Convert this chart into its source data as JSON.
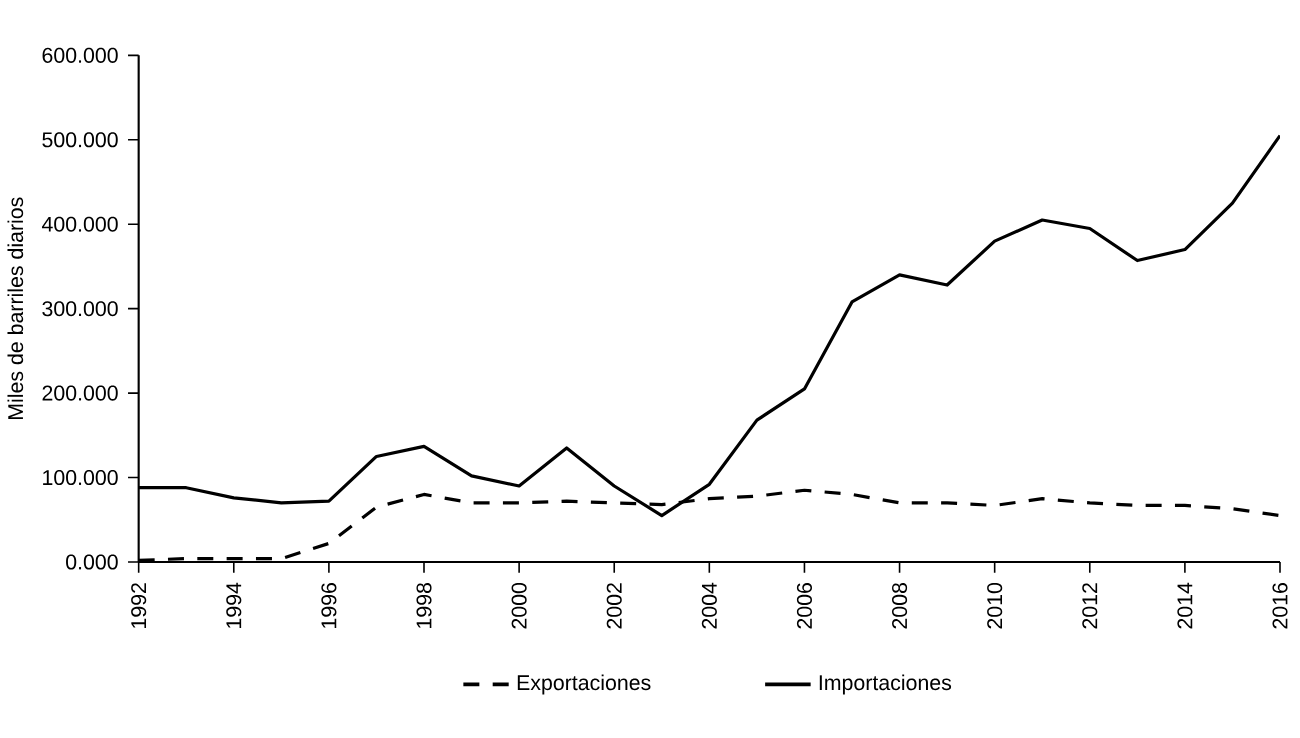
{
  "chart_data": {
    "type": "line",
    "ylabel": "Miles de barriles diarios",
    "x": [
      1992,
      1993,
      1994,
      1995,
      1996,
      1997,
      1998,
      1999,
      2000,
      2001,
      2002,
      2003,
      2004,
      2005,
      2006,
      2007,
      2008,
      2009,
      2010,
      2011,
      2012,
      2013,
      2014,
      2015,
      2016
    ],
    "series": [
      {
        "name": "Exportaciones",
        "color": "#000000",
        "line_style": "dashed",
        "values": [
          2,
          4,
          4,
          4,
          22,
          65,
          80,
          70,
          70,
          72,
          70,
          68,
          75,
          78,
          85,
          80,
          70,
          70,
          67,
          75,
          70,
          67,
          67,
          63,
          55
        ]
      },
      {
        "name": "Importaciones",
        "color": "#000000",
        "line_style": "solid",
        "values": [
          88,
          88,
          76,
          70,
          72,
          125,
          137,
          102,
          90,
          135,
          90,
          55,
          92,
          168,
          205,
          308,
          340,
          328,
          380,
          405,
          395,
          357,
          370,
          425,
          505
        ]
      }
    ],
    "xlim": [
      1992,
      2016
    ],
    "xticks": [
      1992,
      1994,
      1996,
      1998,
      2000,
      2002,
      2004,
      2006,
      2008,
      2010,
      2012,
      2014,
      2016
    ],
    "ylim": [
      0,
      600
    ],
    "yticks": [
      {
        "value": 0,
        "label": "0.000"
      },
      {
        "value": 100,
        "label": "100.000"
      },
      {
        "value": 200,
        "label": "200.000"
      },
      {
        "value": 300,
        "label": "300.000"
      },
      {
        "value": 400,
        "label": "400.000"
      },
      {
        "value": 500,
        "label": "500.000"
      },
      {
        "value": 600,
        "label": "600.000"
      }
    ],
    "marker": "none",
    "legend": "bottom"
  }
}
